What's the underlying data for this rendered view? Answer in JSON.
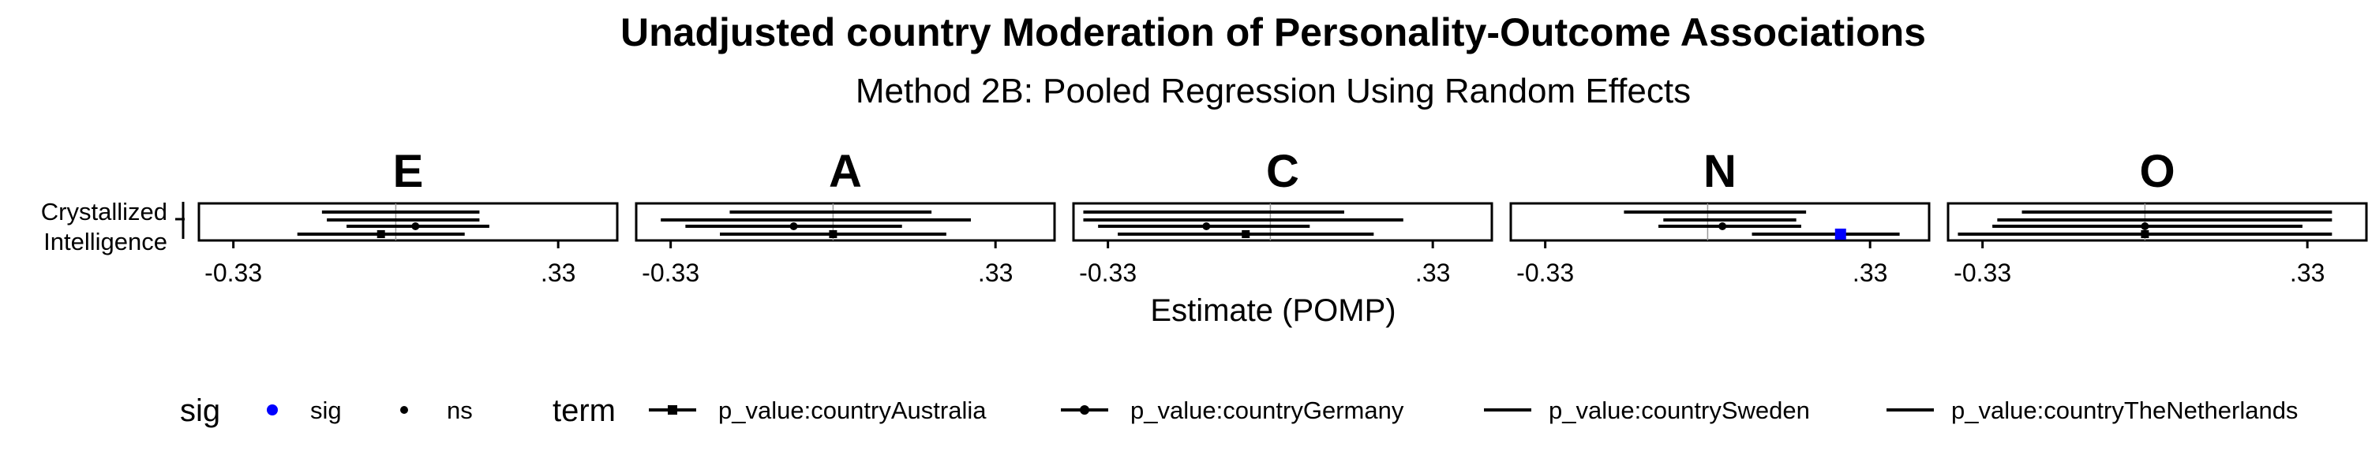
{
  "chart_data": {
    "type": "forest",
    "title": "Unadjusted country Moderation of Personality-Outcome Associations",
    "subtitle": "Method 2B: Pooled Regression Using Random Effects",
    "xlabel": "Estimate (POMP)",
    "y_category": "Crystallized\nIntelligence",
    "xlim": [
      -0.4,
      0.45
    ],
    "x_ticks": [
      -0.33,
      0.33
    ],
    "x_tick_labels": [
      "-0.33",
      ".33"
    ],
    "facets": [
      "E",
      "A",
      "C",
      "N",
      "O"
    ],
    "terms": [
      "p_value:countryAustralia",
      "p_value:countryGermany",
      "p_value:countrySweden",
      "p_value:countryTheNetherlands"
    ],
    "term_shapes": [
      "square",
      "circle",
      "none",
      "none"
    ],
    "sig_legend_title": "sig",
    "sig_levels": [
      "sig",
      "ns"
    ],
    "sig_colors": {
      "sig": "#0000ff",
      "ns": "#000000"
    },
    "term_legend_title": "term",
    "panels": [
      {
        "facet": "E",
        "estimates": [
          {
            "term": "p_value:countryAustralia",
            "est": -0.03,
            "lo": -0.2,
            "hi": 0.14,
            "sig": "ns"
          },
          {
            "term": "p_value:countryGermany",
            "est": 0.04,
            "lo": -0.1,
            "hi": 0.19,
            "sig": "ns"
          },
          {
            "term": "p_value:countrySweden",
            "est": 0.02,
            "lo": -0.14,
            "hi": 0.17,
            "sig": "ns"
          },
          {
            "term": "p_value:countryTheNetherlands",
            "est": 0.0,
            "lo": -0.15,
            "hi": 0.17,
            "sig": "ns"
          }
        ]
      },
      {
        "facet": "A",
        "estimates": [
          {
            "term": "p_value:countryAustralia",
            "est": 0.0,
            "lo": -0.23,
            "hi": 0.23,
            "sig": "ns"
          },
          {
            "term": "p_value:countryGermany",
            "est": -0.08,
            "lo": -0.3,
            "hi": 0.14,
            "sig": "ns"
          },
          {
            "term": "p_value:countrySweden",
            "est": -0.03,
            "lo": -0.35,
            "hi": 0.28,
            "sig": "ns"
          },
          {
            "term": "p_value:countryTheNetherlands",
            "est": 0.0,
            "lo": -0.21,
            "hi": 0.2,
            "sig": "ns"
          }
        ]
      },
      {
        "facet": "C",
        "estimates": [
          {
            "term": "p_value:countryAustralia",
            "est": -0.05,
            "lo": -0.31,
            "hi": 0.21,
            "sig": "ns"
          },
          {
            "term": "p_value:countryGermany",
            "est": -0.13,
            "lo": -0.35,
            "hi": 0.08,
            "sig": "ns"
          },
          {
            "term": "p_value:countrySweden",
            "est": -0.05,
            "lo": -0.38,
            "hi": 0.27,
            "sig": "ns"
          },
          {
            "term": "p_value:countryTheNetherlands",
            "est": -0.05,
            "lo": -0.38,
            "hi": 0.15,
            "sig": "ns"
          }
        ]
      },
      {
        "facet": "N",
        "estimates": [
          {
            "term": "p_value:countryAustralia",
            "est": 0.27,
            "lo": 0.09,
            "hi": 0.39,
            "sig": "sig"
          },
          {
            "term": "p_value:countryGermany",
            "est": 0.03,
            "lo": -0.1,
            "hi": 0.19,
            "sig": "ns"
          },
          {
            "term": "p_value:countrySweden",
            "est": 0.04,
            "lo": -0.09,
            "hi": 0.18,
            "sig": "ns"
          },
          {
            "term": "p_value:countryTheNetherlands",
            "est": 0.03,
            "lo": -0.17,
            "hi": 0.2,
            "sig": "ns"
          }
        ]
      },
      {
        "facet": "O",
        "estimates": [
          {
            "term": "p_value:countryAustralia",
            "est": 0.0,
            "lo": -0.38,
            "hi": 0.38,
            "sig": "ns"
          },
          {
            "term": "p_value:countryGermany",
            "est": 0.0,
            "lo": -0.31,
            "hi": 0.32,
            "sig": "ns"
          },
          {
            "term": "p_value:countrySweden",
            "est": 0.0,
            "lo": -0.3,
            "hi": 0.38,
            "sig": "ns"
          },
          {
            "term": "p_value:countryTheNetherlands",
            "est": 0.0,
            "lo": -0.25,
            "hi": 0.38,
            "sig": "ns"
          }
        ]
      }
    ]
  }
}
